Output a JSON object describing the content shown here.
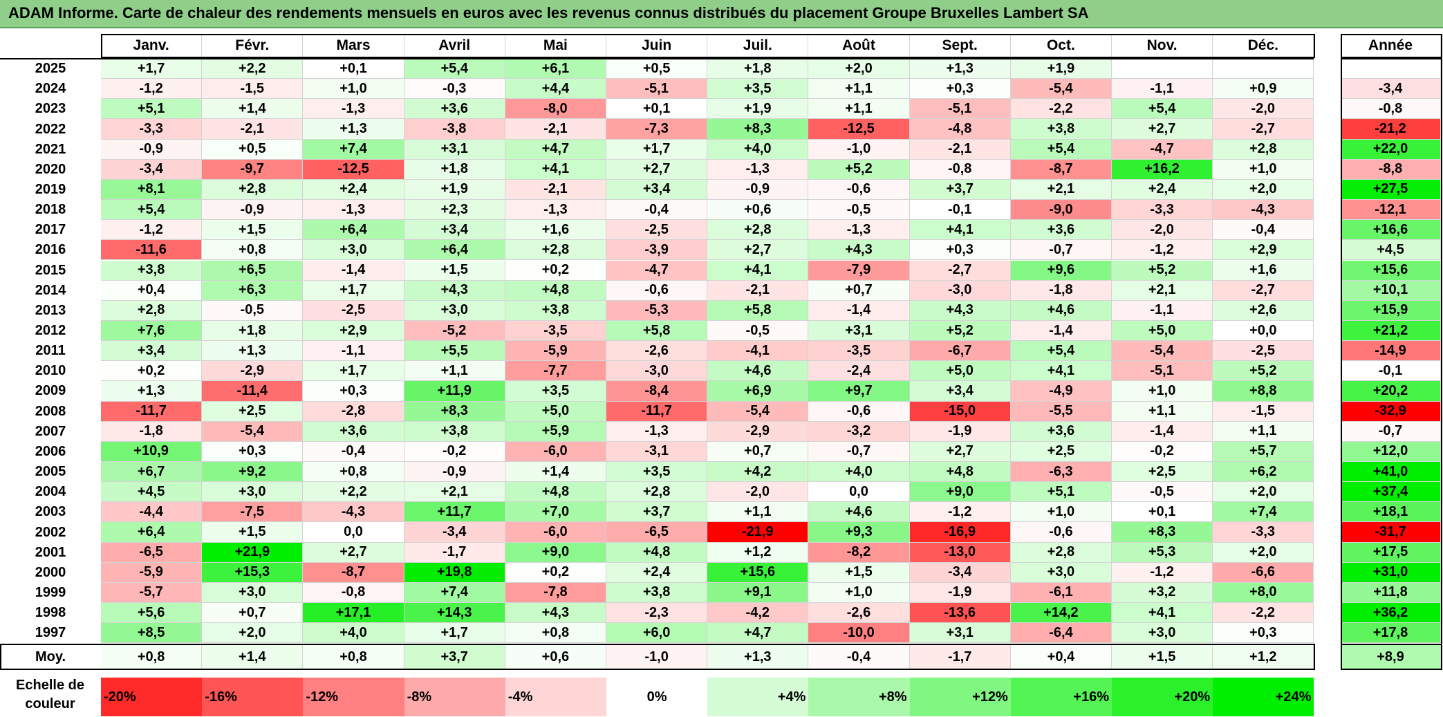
{
  "title": "ADAM Informe. Carte de chaleur des rendements mensuels en euros avec les revenus connus distribués du placement Groupe Bruxelles Lambert SA",
  "chart_data": {
    "type": "heatmap",
    "title": "ADAM Informe. Carte de chaleur des rendements mensuels en euros avec les revenus connus distribués du placement Groupe Bruxelles Lambert SA",
    "columns": [
      "Janv.",
      "Févr.",
      "Mars",
      "Avril",
      "Mai",
      "Juin",
      "Juil.",
      "Août",
      "Sept.",
      "Oct.",
      "Nov.",
      "Déc."
    ],
    "annual_header": "Année",
    "rows": [
      {
        "year": "2025",
        "values": [
          "+1,7",
          "+2,2",
          "+0,1",
          "+5,4",
          "+6,1",
          "+0,5",
          "+1,8",
          "+2,0",
          "+1,3",
          "+1,9",
          "",
          ""
        ],
        "annual": ""
      },
      {
        "year": "2024",
        "values": [
          "-1,2",
          "-1,5",
          "+1,0",
          "-0,3",
          "+4,4",
          "-5,1",
          "+3,5",
          "+1,1",
          "+0,3",
          "-5,4",
          "-1,1",
          "+0,9"
        ],
        "annual": "-3,4"
      },
      {
        "year": "2023",
        "values": [
          "+5,1",
          "+1,4",
          "-1,3",
          "+3,6",
          "-8,0",
          "+0,1",
          "+1,9",
          "+1,1",
          "-5,1",
          "-2,2",
          "+5,4",
          "-2,0"
        ],
        "annual": "-0,8"
      },
      {
        "year": "2022",
        "values": [
          "-3,3",
          "-2,1",
          "+1,3",
          "-3,8",
          "-2,1",
          "-7,3",
          "+8,3",
          "-12,5",
          "-4,8",
          "+3,8",
          "+2,7",
          "-2,7"
        ],
        "annual": "-21,2"
      },
      {
        "year": "2021",
        "values": [
          "-0,9",
          "+0,5",
          "+7,4",
          "+3,1",
          "+4,7",
          "+1,7",
          "+4,0",
          "-1,0",
          "-2,1",
          "+5,4",
          "-4,7",
          "+2,8"
        ],
        "annual": "+22,0"
      },
      {
        "year": "2020",
        "values": [
          "-3,4",
          "-9,7",
          "-12,5",
          "+1,8",
          "+4,1",
          "+2,7",
          "-1,3",
          "+5,2",
          "-0,8",
          "-8,7",
          "+16,2",
          "+1,0"
        ],
        "annual": "-8,8"
      },
      {
        "year": "2019",
        "values": [
          "+8,1",
          "+2,8",
          "+2,4",
          "+1,9",
          "-2,1",
          "+3,4",
          "-0,9",
          "-0,6",
          "+3,7",
          "+2,1",
          "+2,4",
          "+2,0"
        ],
        "annual": "+27,5"
      },
      {
        "year": "2018",
        "values": [
          "+5,4",
          "-0,9",
          "-1,3",
          "+2,3",
          "-1,3",
          "-0,4",
          "+0,6",
          "-0,5",
          "-0,1",
          "-9,0",
          "-3,3",
          "-4,3"
        ],
        "annual": "-12,1"
      },
      {
        "year": "2017",
        "values": [
          "-1,2",
          "+1,5",
          "+6,4",
          "+3,4",
          "+1,6",
          "-2,5",
          "+2,8",
          "-1,3",
          "+4,1",
          "+3,6",
          "-2,0",
          "-0,4"
        ],
        "annual": "+16,6"
      },
      {
        "year": "2016",
        "values": [
          "-11,6",
          "+0,8",
          "+3,0",
          "+6,4",
          "+2,8",
          "-3,9",
          "+2,7",
          "+4,3",
          "+0,3",
          "-0,7",
          "-1,2",
          "+2,9"
        ],
        "annual": "+4,5"
      },
      {
        "year": "2015",
        "values": [
          "+3,8",
          "+6,5",
          "-1,4",
          "+1,5",
          "+0,2",
          "-4,7",
          "+4,1",
          "-7,9",
          "-2,7",
          "+9,6",
          "+5,2",
          "+1,6"
        ],
        "annual": "+15,6"
      },
      {
        "year": "2014",
        "values": [
          "+0,4",
          "+6,3",
          "+1,7",
          "+4,3",
          "+4,8",
          "-0,6",
          "-2,1",
          "+0,7",
          "-3,0",
          "-1,8",
          "+2,1",
          "-2,7"
        ],
        "annual": "+10,1"
      },
      {
        "year": "2013",
        "values": [
          "+2,8",
          "-0,5",
          "-2,5",
          "+3,0",
          "+3,8",
          "-5,3",
          "+5,8",
          "-1,4",
          "+4,3",
          "+4,6",
          "-1,1",
          "+2,6"
        ],
        "annual": "+15,9"
      },
      {
        "year": "2012",
        "values": [
          "+7,6",
          "+1,8",
          "+2,9",
          "-5,2",
          "-3,5",
          "+5,8",
          "-0,5",
          "+3,1",
          "+5,2",
          "-1,4",
          "+5,0",
          "+0,0"
        ],
        "annual": "+21,2"
      },
      {
        "year": "2011",
        "values": [
          "+3,4",
          "+1,3",
          "-1,1",
          "+5,5",
          "-5,9",
          "-2,6",
          "-4,1",
          "-3,5",
          "-6,7",
          "+5,4",
          "-5,4",
          "-2,5"
        ],
        "annual": "-14,9"
      },
      {
        "year": "2010",
        "values": [
          "+0,2",
          "-2,9",
          "+1,7",
          "+1,1",
          "-7,7",
          "-3,0",
          "+4,6",
          "-2,4",
          "+5,0",
          "+4,1",
          "-5,1",
          "+5,2"
        ],
        "annual": "-0,1"
      },
      {
        "year": "2009",
        "values": [
          "+1,3",
          "-11,4",
          "+0,3",
          "+11,9",
          "+3,5",
          "-8,4",
          "+6,9",
          "+9,7",
          "+3,4",
          "-4,9",
          "+1,0",
          "+8,8"
        ],
        "annual": "+20,2"
      },
      {
        "year": "2008",
        "values": [
          "-11,7",
          "+2,5",
          "-2,8",
          "+8,3",
          "+5,0",
          "-11,7",
          "-5,4",
          "-0,6",
          "-15,0",
          "-5,5",
          "+1,1",
          "-1,5"
        ],
        "annual": "-32,9"
      },
      {
        "year": "2007",
        "values": [
          "-1,8",
          "-5,4",
          "+3,6",
          "+3,8",
          "+5,9",
          "-1,3",
          "-2,9",
          "-3,2",
          "-1,9",
          "+3,6",
          "-1,4",
          "+1,1"
        ],
        "annual": "-0,7"
      },
      {
        "year": "2006",
        "values": [
          "+10,9",
          "+0,3",
          "-0,4",
          "-0,2",
          "-6,0",
          "-3,1",
          "+0,7",
          "-0,7",
          "+2,7",
          "+2,5",
          "-0,2",
          "+5,7"
        ],
        "annual": "+12,0"
      },
      {
        "year": "2005",
        "values": [
          "+6,7",
          "+9,2",
          "+0,8",
          "-0,9",
          "+1,4",
          "+3,5",
          "+4,2",
          "+4,0",
          "+4,8",
          "-6,3",
          "+2,5",
          "+6,2"
        ],
        "annual": "+41,0"
      },
      {
        "year": "2004",
        "values": [
          "+4,5",
          "+3,0",
          "+2,2",
          "+2,1",
          "+4,8",
          "+2,8",
          "-2,0",
          "0,0",
          "+9,0",
          "+5,1",
          "-0,5",
          "+2,0"
        ],
        "annual": "+37,4"
      },
      {
        "year": "2003",
        "values": [
          "-4,4",
          "-7,5",
          "-4,3",
          "+11,7",
          "+7,0",
          "+3,7",
          "+1,1",
          "+4,6",
          "-1,2",
          "+1,0",
          "+0,1",
          "+7,4"
        ],
        "annual": "+18,1"
      },
      {
        "year": "2002",
        "values": [
          "+6,4",
          "+1,5",
          "0,0",
          "-3,4",
          "-6,0",
          "-6,5",
          "-21,9",
          "+9,3",
          "-16,9",
          "-0,6",
          "+8,3",
          "-3,3"
        ],
        "annual": "-31,7"
      },
      {
        "year": "2001",
        "values": [
          "-6,5",
          "+21,9",
          "+2,7",
          "-1,7",
          "+9,0",
          "+4,8",
          "+1,2",
          "-8,2",
          "-13,0",
          "+2,8",
          "+5,3",
          "+2,0"
        ],
        "annual": "+17,5"
      },
      {
        "year": "2000",
        "values": [
          "-5,9",
          "+15,3",
          "-8,7",
          "+19,8",
          "+0,2",
          "+2,4",
          "+15,6",
          "+1,5",
          "-3,4",
          "+3,0",
          "-1,2",
          "-6,6"
        ],
        "annual": "+31,0"
      },
      {
        "year": "1999",
        "values": [
          "-5,7",
          "+3,0",
          "-0,8",
          "+7,4",
          "-7,8",
          "+3,8",
          "+9,1",
          "+1,0",
          "-1,9",
          "-6,1",
          "+3,2",
          "+8,0"
        ],
        "annual": "+11,8"
      },
      {
        "year": "1998",
        "values": [
          "+5,6",
          "+0,7",
          "+17,1",
          "+14,3",
          "+4,3",
          "-2,3",
          "-4,2",
          "-2,6",
          "-13,6",
          "+14,2",
          "+4,1",
          "-2,2"
        ],
        "annual": "+36,2"
      },
      {
        "year": "1997",
        "values": [
          "+8,5",
          "+2,0",
          "+4,0",
          "+1,7",
          "+0,8",
          "+6,0",
          "+4,7",
          "-10,0",
          "+3,1",
          "-6,4",
          "+3,0",
          "+0,3"
        ],
        "annual": "+17,8"
      }
    ],
    "average": {
      "label": "Moy.",
      "values": [
        "+0,8",
        "+1,4",
        "+0,8",
        "+3,7",
        "+0,6",
        "-1,0",
        "+1,3",
        "-0,4",
        "-1,7",
        "+0,4",
        "+1,5",
        "+1,2"
      ],
      "annual": "+8,9"
    },
    "scale": {
      "label": "Echelle de couleur",
      "steps": [
        "-20%",
        "-16%",
        "-12%",
        "-8%",
        "-4%",
        "0%",
        "+4%",
        "+8%",
        "+12%",
        "+16%",
        "+20%",
        "+24%"
      ],
      "neg_color": "#ff0000",
      "pos_color": "#00ee00",
      "neutral_color": "#ffffff"
    }
  }
}
